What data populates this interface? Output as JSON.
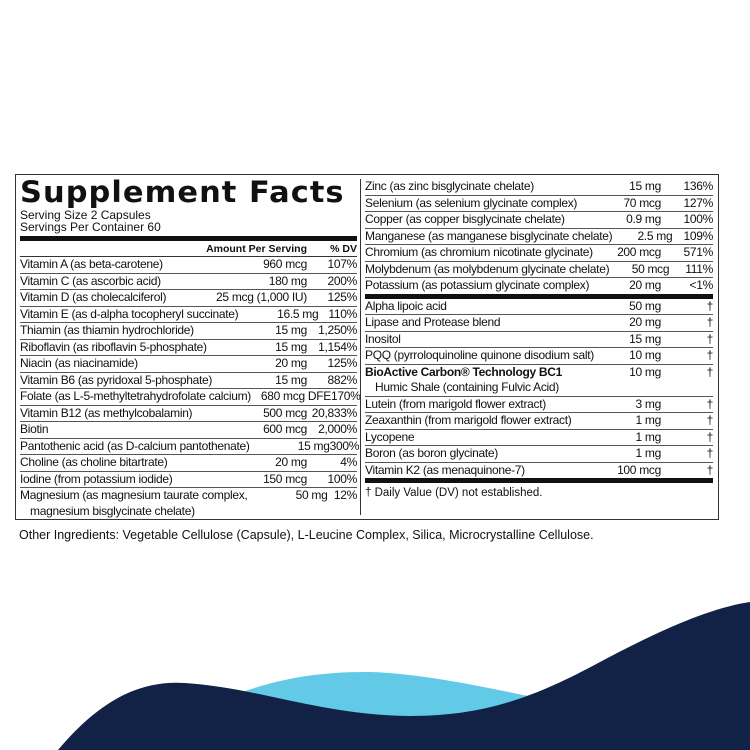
{
  "title": "Supplement Facts",
  "serving_size": "Serving Size 2 Capsules",
  "servings_per_container": "Servings Per Container 60",
  "columns": {
    "amount": "Amount Per Serving",
    "dv": "% DV"
  },
  "left_rows": [
    {
      "name": "Vitamin A (as beta-carotene)",
      "amount": "960 mcg",
      "dv": "107%"
    },
    {
      "name": "Vitamin C (as ascorbic acid)",
      "amount": "180 mg",
      "dv": "200%"
    },
    {
      "name": "Vitamin D (as cholecalciferol)",
      "amount": "25 mcg (1,000 IU)",
      "dv": "125%"
    },
    {
      "name": "Vitamin E (as d-alpha tocopheryl succinate)",
      "amount": "16.5 mg",
      "dv": "110%"
    },
    {
      "name": "Thiamin (as thiamin hydrochloride)",
      "amount": "15 mg",
      "dv": "1,250%"
    },
    {
      "name": "Riboflavin (as riboflavin 5-phosphate)",
      "amount": "15 mg",
      "dv": "1,154%"
    },
    {
      "name": "Niacin (as niacinamide)",
      "amount": "20 mg",
      "dv": "125%"
    },
    {
      "name": "Vitamin B6 (as pyridoxal 5-phosphate)",
      "amount": "15 mg",
      "dv": "882%"
    },
    {
      "name": "Folate (as L-5-methyltetrahydrofolate calcium)",
      "amount": "680 mcg DFE",
      "dv": "170%"
    },
    {
      "name": "Vitamin B12 (as methylcobalamin)",
      "amount": "500 mcg",
      "dv": "20,833%"
    },
    {
      "name": "Biotin",
      "amount": "600 mcg",
      "dv": "2,000%"
    },
    {
      "name": "Pantothenic acid (as D-calcium pantothenate)",
      "amount": "15 mg",
      "dv": "300%"
    },
    {
      "name": "Choline (as choline bitartrate)",
      "amount": "20 mg",
      "dv": "4%"
    },
    {
      "name": "Iodine (from potassium iodide)",
      "amount": "150 mcg",
      "dv": "100%"
    },
    {
      "name": "Magnesium (as magnesium taurate complex,",
      "name2": "magnesium bisglycinate chelate)",
      "amount": "50 mg",
      "dv": "12%"
    }
  ],
  "right_rows_minerals": [
    {
      "name": "Zinc (as zinc bisglycinate chelate)",
      "amount": "15 mg",
      "dv": "136%"
    },
    {
      "name": "Selenium (as selenium glycinate complex)",
      "amount": "70 mcg",
      "dv": "127%"
    },
    {
      "name": "Copper (as copper bisglycinate chelate)",
      "amount": "0.9 mg",
      "dv": "100%"
    },
    {
      "name": "Manganese (as manganese bisglycinate chelate)",
      "amount": "2.5 mg",
      "dv": "109%"
    },
    {
      "name": "Chromium (as chromium nicotinate glycinate)",
      "amount": "200 mcg",
      "dv": "571%"
    },
    {
      "name": "Molybdenum (as molybdenum glycinate chelate)",
      "amount": "50 mcg",
      "dv": "111%"
    },
    {
      "name": "Potassium (as potassium glycinate complex)",
      "amount": "20 mg",
      "dv": "<1%"
    }
  ],
  "right_rows_other": [
    {
      "name": "Alpha lipoic acid",
      "amount": "50 mg",
      "dv": "†"
    },
    {
      "name": "Lipase and Protease blend",
      "amount": "20 mg",
      "dv": "†"
    },
    {
      "name": "Inositol",
      "amount": "15 mg",
      "dv": "†"
    },
    {
      "name": "PQQ (pyrroloquinoline quinone disodium salt)",
      "amount": "10 mg",
      "dv": "†"
    },
    {
      "name": "BioActive Carbon® Technology BC1",
      "name2": "Humic Shale (containing Fulvic Acid)",
      "amount": "10 mg",
      "dv": "†"
    },
    {
      "name": "Lutein (from marigold flower extract)",
      "amount": "3 mg",
      "dv": "†"
    },
    {
      "name": "Zeaxanthin (from marigold flower extract)",
      "amount": "1 mg",
      "dv": "†"
    },
    {
      "name": "Lycopene",
      "amount": "1 mg",
      "dv": "†"
    },
    {
      "name": "Boron (as boron glycinate)",
      "amount": "1 mg",
      "dv": "†"
    },
    {
      "name": "Vitamin K2 (as menaquinone-7)",
      "amount": "100 mcg",
      "dv": "†"
    }
  ],
  "footnote": "† Daily Value (DV) not established.",
  "other_ingredients": "Other Ingredients: Vegetable Cellulose (Capsule), L-Leucine Complex, Silica, Microcrystalline Cellulose.",
  "colors": {
    "wave_dark": "#112246",
    "wave_light": "#62cae6"
  }
}
